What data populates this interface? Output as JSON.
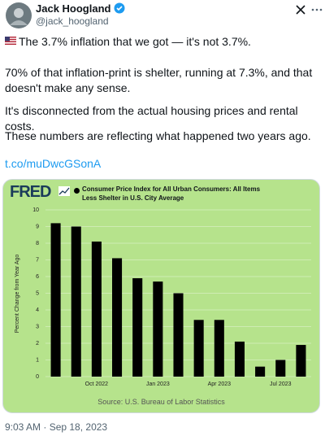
{
  "author": {
    "name": "Jack Hoogland",
    "handle": "@jack_hoogland"
  },
  "tweet": {
    "paragraphs": [
      "The 3.7% inflation that we got — it's not 3.7%.",
      "70% of that inflation-print is shelter, running at 7.3%, and that doesn't make any sense.",
      "It's disconnected from the actual housing prices and rental costs.",
      "These numbers are reflecting what happened two years ago."
    ],
    "link": "t.co/muDwcGSonA",
    "timestamp": "9:03 AM · Sep 18, 2023"
  },
  "chart_data": {
    "type": "bar",
    "brand": "FRED",
    "title": "Consumer Price Index for All Urban Consumers: All Items Less Shelter in U.S. City Average",
    "y_label": "Percent Change from Year Ago",
    "source": "Source: U.S. Bureau of Labor Statistics",
    "categories": [
      null,
      null,
      "Oct 2022",
      null,
      null,
      "Jan 2023",
      null,
      null,
      "Apr 2023",
      null,
      null,
      "Jul 2023",
      null
    ],
    "values": [
      9.2,
      9.0,
      8.1,
      7.1,
      5.9,
      5.7,
      5.0,
      3.4,
      3.4,
      2.1,
      0.6,
      1.0,
      1.9
    ],
    "color": "#000000",
    "ylim": [
      0,
      10
    ],
    "yticks": [
      0,
      1,
      2,
      3,
      4,
      5,
      6,
      7,
      8,
      9,
      10
    ],
    "grid": true
  }
}
